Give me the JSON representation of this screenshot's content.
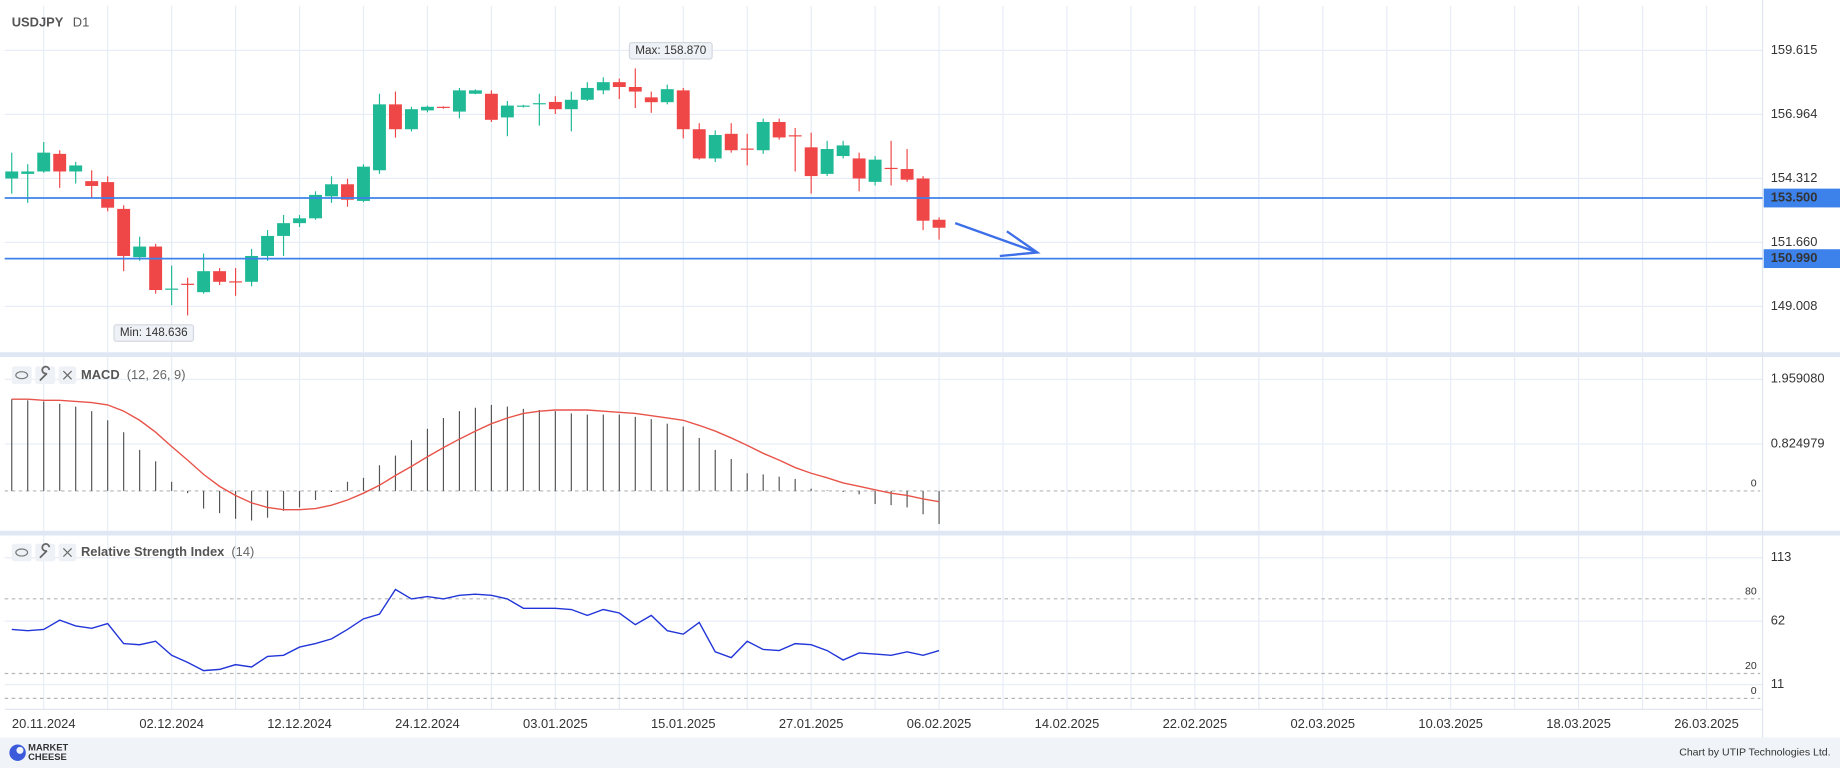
{
  "chart_data": [
    {
      "type": "candlestick",
      "title": "USDJPY",
      "subtitle": "D1",
      "categories": [
        null,
        null,
        "20.11.2024",
        null,
        null,
        null,
        null,
        null,
        null,
        null,
        "02.12.2024",
        null,
        null,
        null,
        null,
        null,
        null,
        null,
        "12.12.2024",
        null,
        null,
        null,
        null,
        null,
        null,
        null,
        "24.12.2024",
        null,
        null,
        null,
        null,
        null,
        null,
        null,
        "03.01.2025",
        null,
        null,
        null,
        null,
        null,
        null,
        null,
        "15.01.2025",
        null,
        null,
        null,
        null,
        null,
        null,
        null,
        "27.01.2025",
        null,
        null,
        null,
        null,
        null,
        null,
        null,
        "06.02.2025",
        null,
        null,
        null,
        null,
        null,
        null,
        null,
        "14.02.2025",
        null,
        null,
        null,
        null,
        null,
        null,
        null,
        "22.02.2025",
        null,
        null,
        null,
        null,
        null,
        null,
        null,
        "02.03.2025",
        null,
        null,
        null,
        null,
        null,
        null,
        null,
        "10.03.2025",
        null,
        null,
        null,
        null,
        null,
        null,
        null,
        "18.03.2025",
        null,
        null,
        null,
        null,
        null,
        null,
        null,
        "26.03.2025"
      ],
      "open": [
        154.31,
        154.5,
        154.6,
        155.33,
        154.6,
        154.2,
        154.16,
        153.05,
        151.05,
        151.49,
        149.7,
        149.95,
        149.6,
        150.47,
        150.05,
        150.03,
        151.1,
        151.93,
        152.46,
        152.66,
        153.57,
        154.07,
        153.38,
        154.65,
        157.38,
        156.35,
        157.13,
        157.28,
        157.08,
        157.82,
        157.82,
        156.84,
        157.3,
        157.4,
        157.48,
        157.18,
        157.57,
        157.96,
        158.3,
        158.1,
        157.67,
        157.47,
        157.96,
        156.35,
        155.14,
        156.16,
        155.55,
        155.48,
        156.65,
        156.1,
        155.6,
        154.5,
        155.24,
        155.14,
        154.17,
        154.75,
        154.7,
        154.31,
        152.6,
        null,
        null,
        null,
        null,
        null,
        null,
        null,
        null,
        null,
        null,
        null,
        null,
        null,
        null,
        null,
        null,
        null,
        null,
        null,
        null,
        null,
        null,
        null,
        null,
        null,
        null,
        null,
        null,
        null,
        null,
        null,
        null,
        null,
        null,
        null,
        null,
        null,
        null,
        null,
        null,
        null,
        null,
        null,
        null,
        null,
        null,
        null,
        null
      ],
      "high": [
        155.38,
        154.9,
        155.82,
        155.48,
        155.0,
        154.65,
        154.4,
        153.2,
        151.9,
        151.6,
        150.7,
        150.2,
        151.2,
        150.6,
        150.6,
        151.39,
        152.17,
        152.8,
        152.8,
        153.78,
        154.4,
        154.3,
        154.9,
        157.82,
        157.91,
        157.28,
        157.33,
        157.3,
        158.06,
        158.0,
        157.96,
        157.52,
        157.36,
        157.82,
        157.72,
        157.91,
        158.3,
        158.5,
        158.45,
        158.87,
        157.91,
        158.2,
        158.06,
        156.6,
        156.3,
        156.6,
        156.16,
        156.79,
        156.79,
        156.4,
        156.21,
        155.87,
        155.87,
        155.38,
        155.24,
        155.87,
        155.53,
        154.41,
        152.7,
        null,
        null,
        null,
        null,
        null,
        null,
        null,
        null,
        null,
        null,
        null,
        null,
        null,
        null,
        null,
        null,
        null,
        null,
        null,
        null,
        null,
        null,
        null,
        null,
        null,
        null,
        null,
        null,
        null,
        null,
        null,
        null,
        null,
        null,
        null,
        null,
        null,
        null,
        null,
        null,
        null,
        null,
        null,
        null,
        null,
        null,
        null,
        null
      ],
      "low": [
        153.68,
        153.3,
        154.55,
        153.92,
        154.1,
        153.5,
        152.95,
        150.47,
        150.9,
        149.54,
        149.06,
        148.636,
        149.54,
        149.9,
        149.45,
        149.84,
        150.9,
        151.1,
        152.3,
        152.6,
        153.3,
        153.14,
        153.33,
        154.5,
        156.0,
        156.26,
        157.05,
        157.2,
        156.8,
        157.8,
        156.65,
        156.06,
        157.25,
        156.5,
        156.98,
        156.26,
        157.52,
        157.8,
        157.6,
        157.23,
        157.03,
        157.38,
        155.97,
        155.09,
        154.99,
        155.38,
        154.85,
        155.33,
        155.92,
        154.6,
        153.68,
        154.41,
        155.14,
        153.78,
        154.02,
        154.02,
        154.17,
        152.17,
        151.78,
        null,
        null,
        null,
        null,
        null,
        null,
        null,
        null,
        null,
        null,
        null,
        null,
        null,
        null,
        null,
        null,
        null,
        null,
        null,
        null,
        null,
        null,
        null,
        null,
        null,
        null,
        null,
        null,
        null,
        null,
        null,
        null,
        null,
        null,
        null,
        null,
        null,
        null,
        null,
        null,
        null,
        null,
        null,
        null,
        null,
        null,
        null,
        null
      ],
      "close": [
        154.6,
        154.6,
        155.38,
        154.6,
        154.85,
        154.0,
        153.1,
        151.1,
        151.49,
        149.69,
        149.75,
        149.9,
        150.47,
        150.03,
        150.0,
        151.1,
        151.93,
        152.46,
        152.66,
        153.63,
        154.07,
        153.43,
        154.8,
        157.38,
        156.35,
        157.18,
        157.28,
        157.25,
        157.96,
        157.96,
        156.74,
        157.33,
        157.33,
        157.43,
        157.18,
        157.57,
        158.06,
        158.3,
        158.1,
        157.91,
        157.47,
        158.01,
        156.35,
        155.14,
        156.11,
        155.48,
        155.5,
        156.65,
        156.01,
        156.06,
        154.41,
        155.53,
        155.68,
        154.31,
        155.09,
        154.7,
        154.26,
        152.56,
        152.27,
        null,
        null,
        null,
        null,
        null,
        null,
        null,
        null,
        null,
        null,
        null,
        null,
        null,
        null,
        null,
        null,
        null,
        null,
        null,
        null,
        null,
        null,
        null,
        null,
        null,
        null,
        null,
        null,
        null,
        null,
        null,
        null,
        null,
        null,
        null,
        null,
        null,
        null,
        null,
        null,
        null,
        null,
        null,
        null,
        null,
        null,
        null,
        null
      ],
      "up_color": "#1fb996",
      "down_color": "#ef4747",
      "ylim": [
        147.11,
        161.46
      ],
      "yticks": [
        159.615,
        156.964,
        154.312,
        {
          "value": 151.66,
          "label": "151.660"
        },
        149.008
      ],
      "grid": true,
      "hlines": [
        {
          "value": 153.5,
          "label": "153.500"
        },
        {
          "value": 150.99,
          "label": "150.990"
        }
      ],
      "hline_color": "#3d82ea",
      "annotations": [
        {
          "text": "Max: 158.870",
          "value": 158.87
        },
        {
          "text": "Min: 148.636",
          "value": 148.636
        }
      ]
    },
    {
      "type": "macd",
      "title": "MACD",
      "subtitle": "(12, 26, 9)",
      "values": [
        1.61,
        1.59,
        1.57,
        1.53,
        1.48,
        1.4,
        1.24,
        1.03,
        0.72,
        0.52,
        0.16,
        -0.04,
        -0.31,
        -0.39,
        -0.49,
        -0.52,
        -0.47,
        -0.35,
        -0.29,
        -0.16,
        -0.02,
        0.16,
        0.23,
        0.45,
        0.62,
        0.89,
        1.09,
        1.28,
        1.4,
        1.46,
        1.51,
        1.48,
        1.44,
        1.42,
        1.4,
        1.36,
        1.34,
        1.34,
        1.34,
        1.3,
        1.26,
        1.18,
        1.13,
        0.93,
        0.72,
        0.56,
        0.31,
        0.29,
        0.25,
        0.21,
        0.04,
        0.01,
        -0.02,
        -0.06,
        -0.23,
        -0.25,
        -0.29,
        -0.41,
        -0.58,
        null,
        null,
        null,
        null,
        null,
        null,
        null,
        null,
        null,
        null,
        null,
        null,
        null,
        null,
        null,
        null,
        null,
        null,
        null,
        null,
        null,
        null,
        null,
        null,
        null,
        null,
        null,
        null,
        null,
        null,
        null,
        null,
        null,
        null,
        null,
        null,
        null,
        null,
        null,
        null,
        null,
        null,
        null,
        null,
        null,
        null,
        null,
        null
      ],
      "color": "#555555",
      "signal": {
        "color": "#e8544a",
        "values": [
          1.61,
          1.61,
          1.59,
          1.59,
          1.57,
          1.55,
          1.51,
          1.4,
          1.24,
          1.03,
          0.78,
          0.54,
          0.29,
          0.08,
          -0.08,
          -0.21,
          -0.29,
          -0.33,
          -0.33,
          -0.31,
          -0.25,
          -0.16,
          -0.04,
          0.1,
          0.27,
          0.43,
          0.6,
          0.76,
          0.91,
          1.05,
          1.18,
          1.28,
          1.36,
          1.4,
          1.42,
          1.42,
          1.42,
          1.4,
          1.38,
          1.36,
          1.32,
          1.28,
          1.24,
          1.15,
          1.05,
          0.93,
          0.8,
          0.66,
          0.54,
          0.41,
          0.31,
          0.23,
          0.14,
          0.08,
          0.02,
          -0.04,
          -0.08,
          -0.14,
          -0.19,
          null,
          null,
          null,
          null,
          null,
          null,
          null,
          null,
          null,
          null,
          null,
          null,
          null,
          null,
          null,
          null,
          null,
          null,
          null,
          null,
          null,
          null,
          null,
          null,
          null,
          null,
          null,
          null,
          null,
          null,
          null,
          null,
          null,
          null,
          null,
          null,
          null,
          null,
          null,
          null,
          null,
          null,
          null,
          null,
          null,
          null,
          null,
          null
        ]
      },
      "ylim": [
        -0.7,
        2.33
      ],
      "yticks": [
        {
          "value": 1.95908,
          "label": "1.959080"
        },
        0.824979
      ],
      "levels": [
        0
      ]
    },
    {
      "type": "line",
      "title": "Relative Strength Index",
      "subtitle": "(14)",
      "values": [
        55.4,
        54.4,
        55.4,
        62.9,
        58.2,
        56.3,
        60.1,
        44.0,
        43.1,
        45.9,
        34.6,
        28.9,
        22.3,
        23.3,
        27.1,
        25.2,
        33.7,
        34.6,
        41.2,
        44.0,
        47.8,
        55.4,
        63.9,
        67.7,
        87.5,
        79.9,
        81.8,
        79.9,
        82.8,
        83.7,
        82.8,
        79.9,
        72.4,
        72.4,
        72.4,
        71.4,
        66.7,
        71.4,
        68.6,
        59.2,
        66.7,
        54.4,
        51.6,
        61.0,
        37.4,
        32.7,
        45.9,
        39.3,
        38.4,
        44.0,
        43.1,
        38.4,
        30.8,
        36.5,
        35.6,
        34.6,
        37.4,
        34.6,
        38.4,
        null,
        null,
        null,
        null,
        null,
        null,
        null,
        null,
        null,
        null,
        null,
        null,
        null,
        null,
        null,
        null,
        null,
        null,
        null,
        null,
        null,
        null,
        null,
        null,
        null,
        null,
        null,
        null,
        null,
        null,
        null,
        null,
        null,
        null,
        null,
        null,
        null,
        null,
        null,
        null,
        null,
        null,
        null,
        null,
        null,
        null,
        null,
        null
      ],
      "color": "#2236d8",
      "ylim": [
        -5,
        129
      ],
      "yticks": [
        113,
        62,
        11
      ],
      "levels": [
        80,
        20,
        0
      ]
    }
  ],
  "footer": {
    "logo": [
      "MARKET",
      "CHEESE"
    ],
    "credit": "Chart by UTIP Technologies Ltd."
  }
}
